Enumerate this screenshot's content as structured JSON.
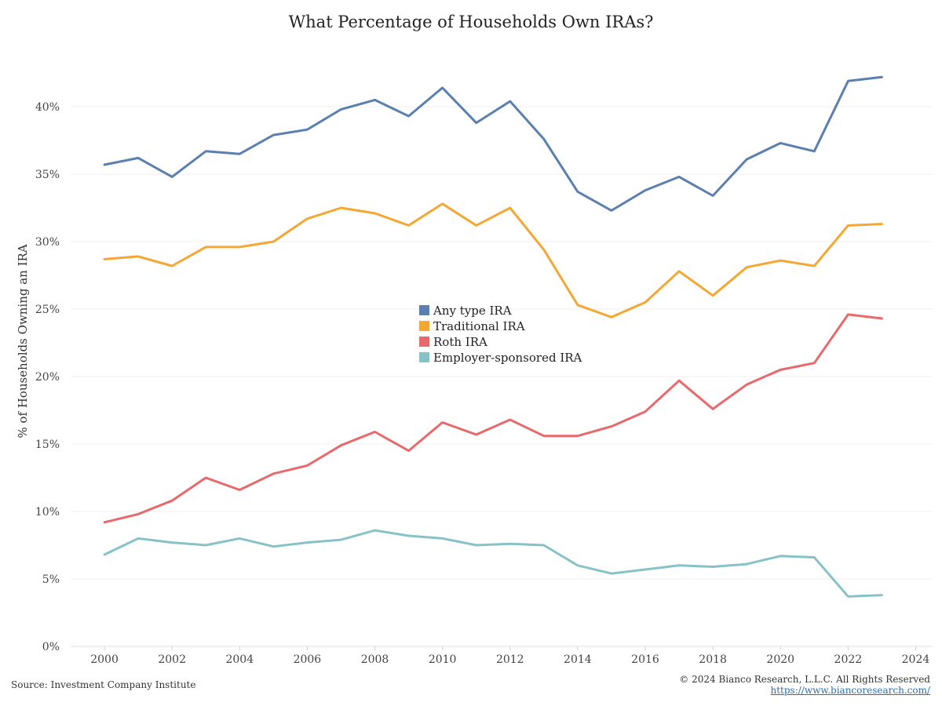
{
  "chart_data": {
    "type": "line",
    "title": "What Percentage of Households Own IRAs?",
    "xlabel": "",
    "ylabel": "% of Households Owning an IRA",
    "x": [
      2000,
      2001,
      2002,
      2003,
      2004,
      2005,
      2006,
      2007,
      2008,
      2009,
      2010,
      2011,
      2012,
      2013,
      2014,
      2015,
      2016,
      2017,
      2018,
      2019,
      2020,
      2021,
      2022,
      2023
    ],
    "xlim": [
      1999,
      2024.5
    ],
    "ylim": [
      0,
      45
    ],
    "x_ticks": [
      "2000",
      "2002",
      "2004",
      "2006",
      "2008",
      "2010",
      "2012",
      "2014",
      "2016",
      "2018",
      "2020",
      "2022",
      "2024"
    ],
    "y_ticks": [
      "0%",
      "5%",
      "10%",
      "15%",
      "20%",
      "25%",
      "30%",
      "35%",
      "40%"
    ],
    "grid": "horizontal",
    "legend_position": "center",
    "series": [
      {
        "name": "Any type IRA",
        "color": "#5b7faf",
        "values": [
          35.7,
          36.2,
          34.8,
          36.7,
          36.5,
          37.9,
          38.3,
          39.8,
          40.5,
          39.3,
          41.4,
          38.8,
          40.4,
          37.6,
          33.7,
          32.3,
          33.8,
          34.8,
          33.4,
          36.1,
          37.3,
          36.7,
          41.9,
          42.2
        ]
      },
      {
        "name": "Traditional IRA",
        "color": "#f5a733",
        "values": [
          28.7,
          28.9,
          28.2,
          29.6,
          29.6,
          30.0,
          31.7,
          32.5,
          32.1,
          31.2,
          32.8,
          31.2,
          32.5,
          29.4,
          25.3,
          24.4,
          25.5,
          27.8,
          26.0,
          28.1,
          28.6,
          28.2,
          31.2,
          31.3
        ]
      },
      {
        "name": "Roth IRA",
        "color": "#e8696b",
        "values": [
          9.2,
          9.8,
          10.8,
          12.5,
          11.6,
          12.8,
          13.4,
          14.9,
          15.9,
          14.5,
          16.6,
          15.7,
          16.8,
          15.6,
          15.6,
          16.3,
          17.4,
          19.7,
          17.6,
          19.4,
          20.5,
          21.0,
          24.6,
          24.3
        ]
      },
      {
        "name": "Employer-sponsored IRA",
        "color": "#88c2c9",
        "values": [
          6.8,
          8.0,
          7.7,
          7.5,
          8.0,
          7.4,
          7.7,
          7.9,
          8.6,
          8.2,
          8.0,
          7.5,
          7.6,
          7.5,
          6.0,
          5.4,
          5.7,
          6.0,
          5.9,
          6.1,
          6.7,
          6.6,
          3.7,
          3.8
        ]
      }
    ]
  },
  "footer": {
    "source": "Source: Investment Company Institute",
    "copyright": "© 2024 Bianco Research, L.L.C. All Rights Reserved",
    "url": "https://www.biancoresearch.com/"
  }
}
